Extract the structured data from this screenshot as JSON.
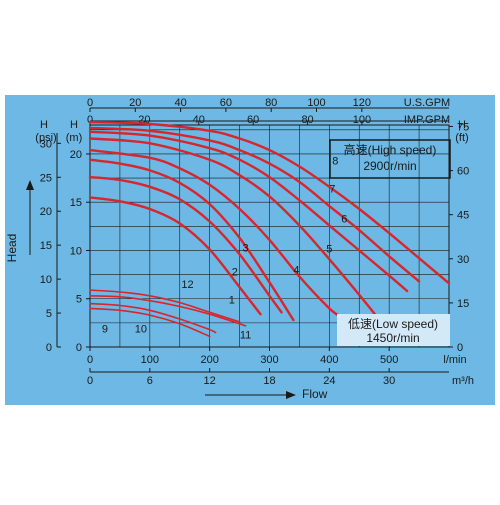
{
  "colors": {
    "panel_bg": "#6db8e4",
    "curve": "#d8262c",
    "grid": "#1a1a1a",
    "speed_box_bg": "#d3e9f7"
  },
  "chart_data": {
    "type": "line",
    "title": "",
    "xlabel": "Flow",
    "ylabel": "Head",
    "grid": true,
    "x_axes": {
      "lpm": {
        "unit": "l/min",
        "ticks": [
          "0",
          "100",
          "200",
          "300",
          "400",
          "500"
        ],
        "range": [
          0,
          600
        ]
      },
      "m3h": {
        "unit": "m³/h",
        "ticks": [
          "0",
          "6",
          "12",
          "18",
          "24",
          "30"
        ],
        "range": [
          0,
          36
        ]
      },
      "usgpm": {
        "unit": "U.S.GPM",
        "ticks": [
          "0",
          "20",
          "40",
          "60",
          "80",
          "100",
          "120"
        ],
        "range": [
          0,
          158.5
        ]
      },
      "impgpm": {
        "unit": "IMP.GPM",
        "ticks": [
          "0",
          "20",
          "40",
          "60",
          "80",
          "100"
        ],
        "range": [
          0,
          132
        ]
      }
    },
    "y_axes": {
      "m": {
        "title": "H",
        "unit": "(m)",
        "ticks": [
          "0",
          "5",
          "10",
          "15",
          "20"
        ],
        "range": [
          0,
          23
        ]
      },
      "psi": {
        "title": "H",
        "unit": "(psi)",
        "ticks": [
          "0",
          "5",
          "10",
          "15",
          "20",
          "25",
          "30"
        ],
        "range": [
          0,
          32.7
        ]
      },
      "ft": {
        "title": "H",
        "unit": "(ft)",
        "ticks": [
          "0",
          "15",
          "30",
          "45",
          "60",
          "75"
        ],
        "range": [
          0,
          75.5
        ]
      }
    },
    "annotations": {
      "high_speed": [
        "高速(High speed)",
        "2900r/min"
      ],
      "low_speed": [
        "低速(Low speed)",
        "1450r/min"
      ]
    },
    "series": [
      {
        "name": "1",
        "x": [
          0,
          50,
          100,
          150,
          200,
          250,
          285
        ],
        "y": [
          15.5,
          15.1,
          14.3,
          12.8,
          10.1,
          6.2,
          3.4
        ]
      },
      {
        "name": "2",
        "x": [
          0,
          50,
          100,
          150,
          200,
          250,
          300,
          320
        ],
        "y": [
          17.6,
          17.3,
          16.6,
          15.3,
          13.0,
          9.6,
          5.3,
          3.6
        ]
      },
      {
        "name": "3",
        "x": [
          0,
          50,
          100,
          150,
          200,
          250,
          300,
          340
        ],
        "y": [
          19.4,
          19.0,
          18.3,
          17.0,
          14.8,
          11.3,
          6.7,
          2.8
        ]
      },
      {
        "name": "4",
        "x": [
          0,
          100,
          150,
          200,
          250,
          300,
          350,
          400,
          420
        ],
        "y": [
          20.4,
          19.6,
          18.5,
          16.8,
          14.3,
          11.1,
          7.3,
          4.0,
          3.1
        ]
      },
      {
        "name": "5",
        "x": [
          0,
          100,
          200,
          250,
          300,
          350,
          400,
          450,
          480
        ],
        "y": [
          21.6,
          21.1,
          19.4,
          17.8,
          15.6,
          12.6,
          9.1,
          5.4,
          3.1
        ]
      },
      {
        "name": "6",
        "x": [
          0,
          100,
          200,
          250,
          300,
          350,
          400,
          450,
          500,
          530
        ],
        "y": [
          22.3,
          21.9,
          20.6,
          19.4,
          17.6,
          15.2,
          12.6,
          10.0,
          7.4,
          5.8
        ]
      },
      {
        "name": "7",
        "x": [
          0,
          100,
          200,
          250,
          300,
          350,
          400,
          450,
          500,
          550
        ],
        "y": [
          22.7,
          22.4,
          21.4,
          20.4,
          19.0,
          17.1,
          14.6,
          12.1,
          9.4,
          6.8
        ]
      },
      {
        "name": "8",
        "x": [
          0,
          100,
          200,
          250,
          300,
          350,
          400,
          450,
          500,
          550,
          600
        ],
        "y": [
          23.3,
          23.1,
          22.4,
          21.6,
          20.4,
          18.7,
          16.6,
          14.3,
          11.8,
          9.2,
          6.6
        ]
      },
      {
        "name": "9",
        "x": [
          0,
          50,
          100,
          150,
          200
        ],
        "y": [
          4.0,
          3.8,
          3.3,
          2.4,
          1.1
        ]
      },
      {
        "name": "10",
        "x": [
          0,
          50,
          100,
          150,
          200,
          210
        ],
        "y": [
          4.5,
          4.3,
          3.8,
          2.9,
          1.8,
          1.5
        ]
      },
      {
        "name": "11",
        "x": [
          0,
          50,
          100,
          150,
          200,
          260
        ],
        "y": [
          5.3,
          5.2,
          4.8,
          4.2,
          3.4,
          2.2
        ]
      },
      {
        "name": "12",
        "x": [
          0,
          50,
          100,
          150,
          200,
          250
        ],
        "y": [
          5.9,
          5.7,
          5.3,
          4.6,
          3.6,
          2.6
        ]
      }
    ],
    "label_positions": {
      "1": [
        237,
        4.5
      ],
      "2": [
        242,
        7.4
      ],
      "3": [
        260,
        9.9
      ],
      "4": [
        345,
        7.6
      ],
      "5": [
        400,
        9.8
      ],
      "6": [
        425,
        12.9
      ],
      "7": [
        405,
        16.0
      ],
      "8": [
        410,
        18.9
      ],
      "9": [
        25,
        1.5
      ],
      "10": [
        85,
        1.5
      ],
      "11": [
        260,
        0.9
      ],
      "12": [
        163,
        6.1
      ]
    }
  }
}
